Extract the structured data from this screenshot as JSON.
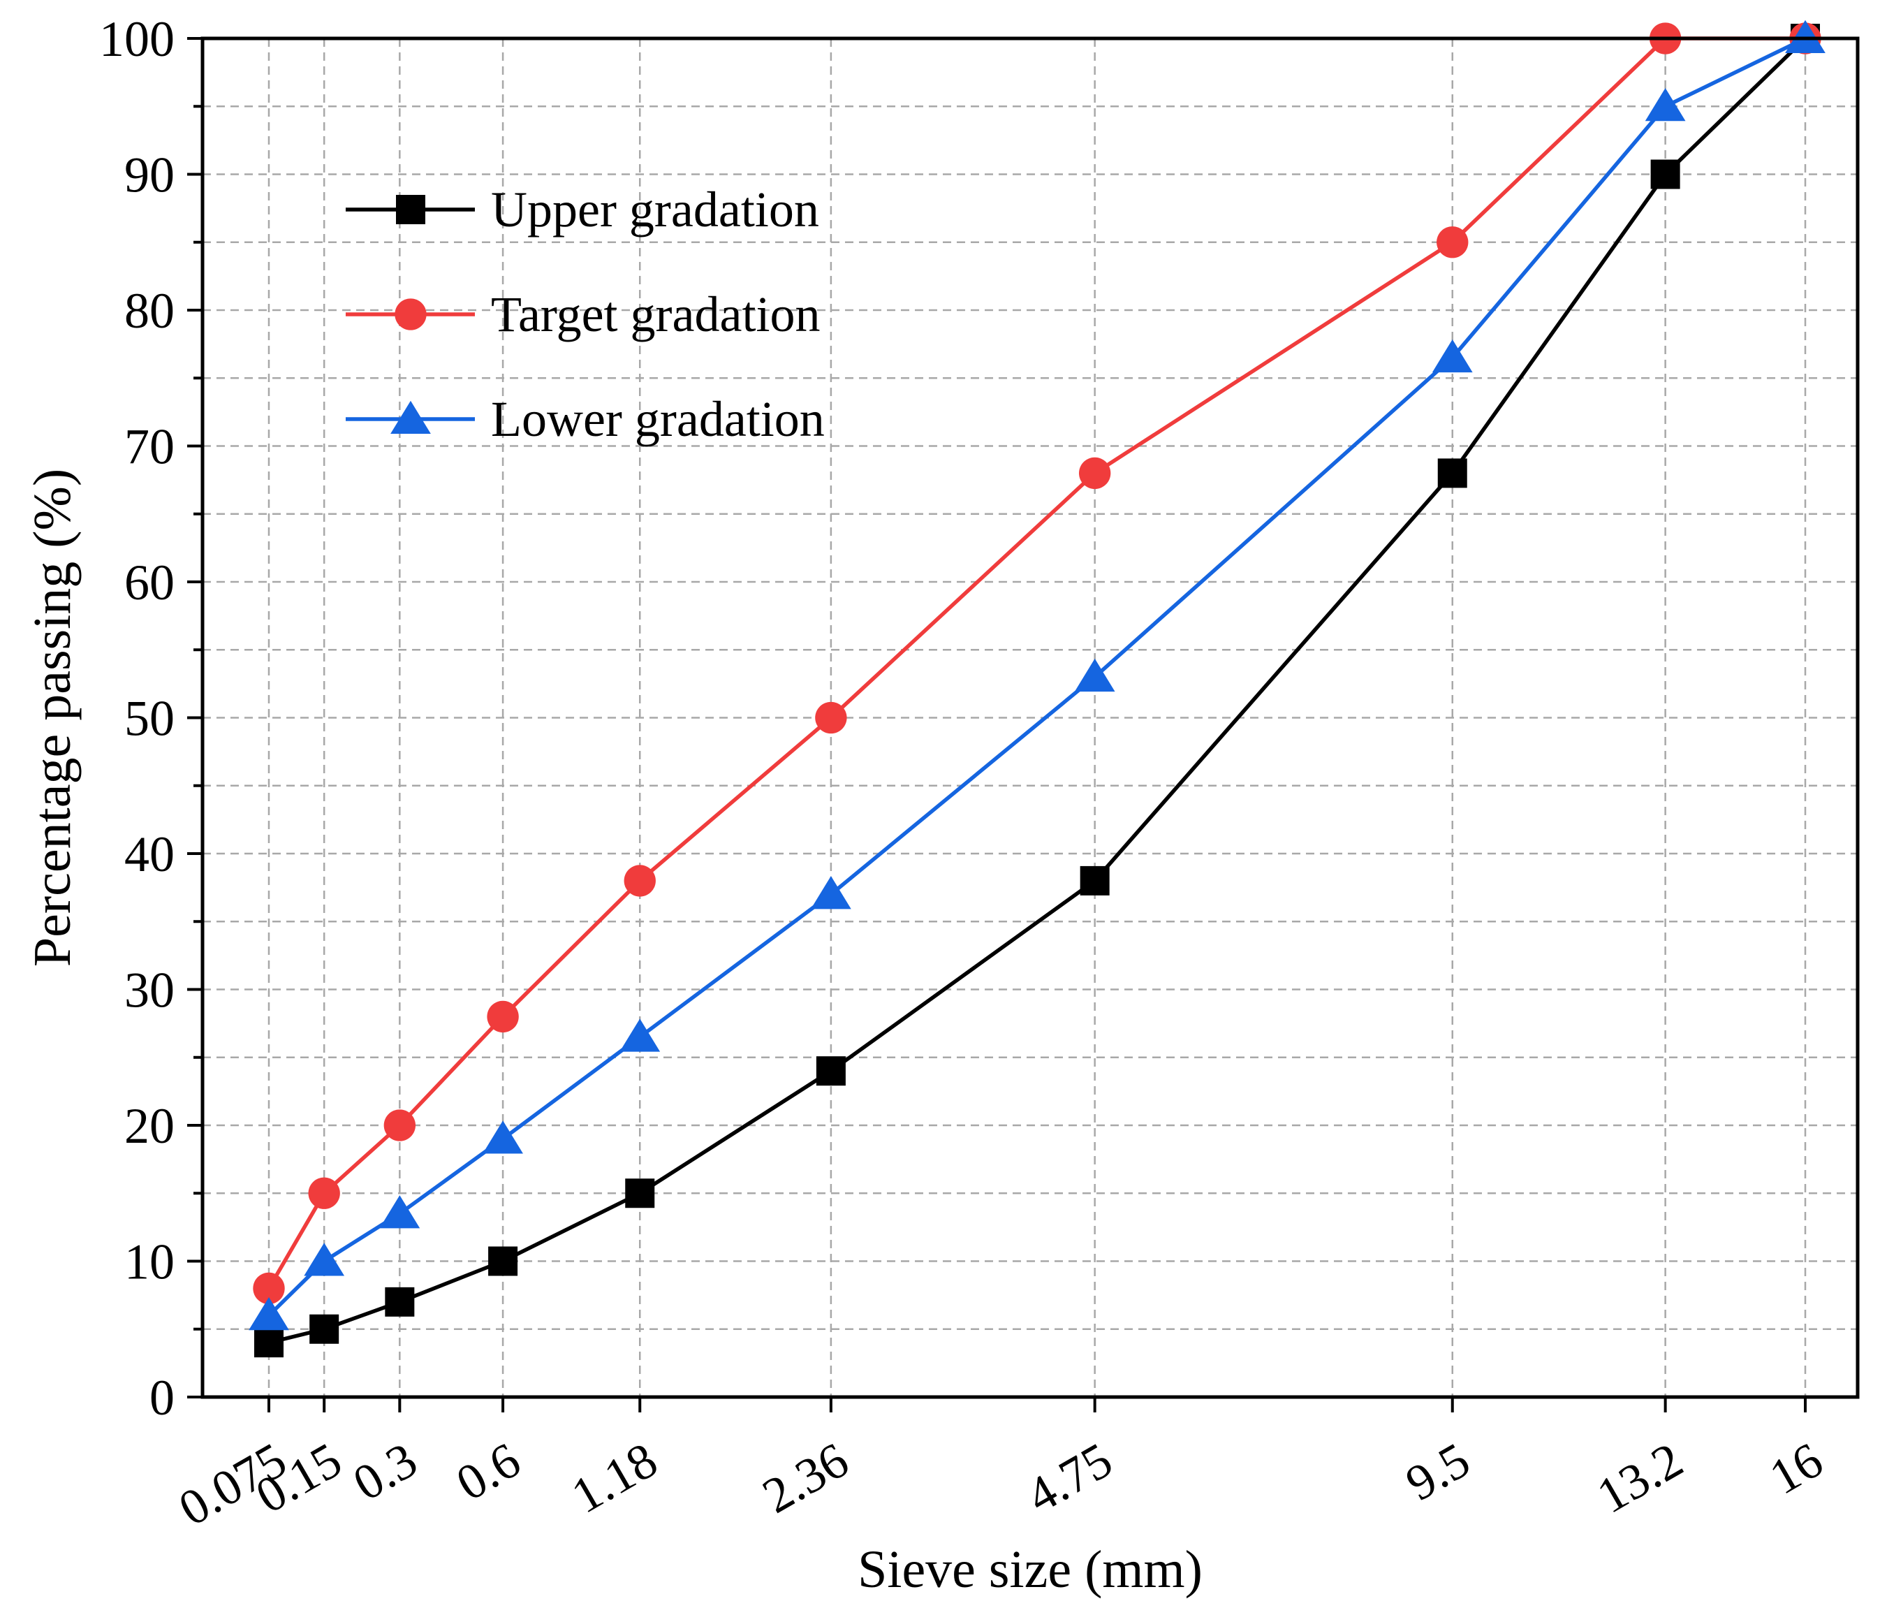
{
  "chart_data": {
    "type": "line",
    "title": "",
    "xlabel": "Sieve size (mm)",
    "ylabel": "Percentage passing (%)",
    "x_scale": "power-0.45",
    "categories": [
      "0.075",
      "0.15",
      "0.3",
      "0.6",
      "1.18",
      "2.36",
      "4.75",
      "9.5",
      "13.2",
      "16"
    ],
    "x": [
      0.075,
      0.15,
      0.3,
      0.6,
      1.18,
      2.36,
      4.75,
      9.5,
      13.2,
      16
    ],
    "ylim": [
      0,
      100
    ],
    "yticks": [
      0,
      10,
      20,
      30,
      40,
      50,
      60,
      70,
      80,
      90,
      100
    ],
    "grid": true,
    "legend_position": "top-left",
    "series": [
      {
        "name": "Upper gradation",
        "color": "#000000",
        "marker": "square",
        "values": [
          4,
          5,
          7,
          10,
          15,
          24,
          38,
          68,
          90,
          100
        ]
      },
      {
        "name": "Target gradation",
        "color": "#f03c3c",
        "marker": "circle",
        "values": [
          8,
          15,
          20,
          28,
          38,
          50,
          68,
          85,
          100,
          100
        ]
      },
      {
        "name": "Lower gradation",
        "color": "#1565e0",
        "marker": "triangle",
        "values": [
          6,
          10,
          13.5,
          19,
          26.5,
          37,
          53,
          76.5,
          95,
          100
        ]
      }
    ]
  }
}
